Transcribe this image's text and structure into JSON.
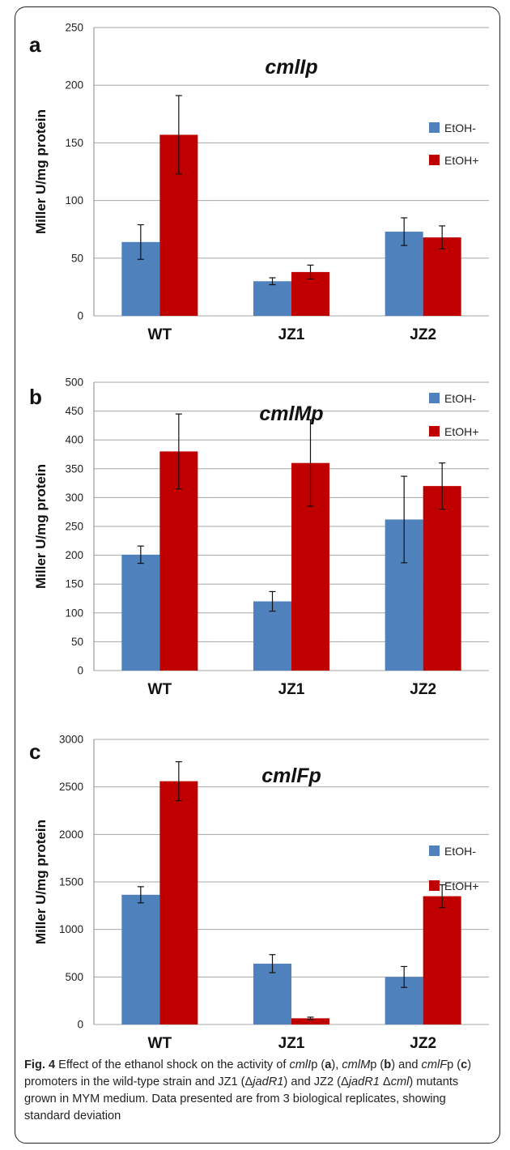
{
  "colors": {
    "etoh_minus": "#4f81bd",
    "etoh_plus": "#c00000",
    "grid": "#a6a6a6",
    "axis_text": "#222222"
  },
  "chart_data": [
    {
      "type": "bar",
      "panel": "a",
      "title": "cmlIp",
      "ylabel": "Miller U/mg protein",
      "categories": [
        "WT",
        "JZ1",
        "JZ2"
      ],
      "yticks": [
        "0",
        "50",
        "100",
        "150",
        "200",
        "250"
      ],
      "ylim": [
        0,
        250
      ],
      "legend_position": "right",
      "series": [
        {
          "name": "EtOH-",
          "values": [
            64,
            30,
            73
          ],
          "errors": [
            15,
            3,
            12
          ]
        },
        {
          "name": "EtOH+",
          "values": [
            157,
            38,
            68
          ],
          "errors": [
            34,
            6,
            10
          ]
        }
      ]
    },
    {
      "type": "bar",
      "panel": "b",
      "title": "cmlMp",
      "ylabel": "Miller U/mg protein",
      "categories": [
        "WT",
        "JZ1",
        "JZ2"
      ],
      "yticks": [
        "0",
        "50",
        "100",
        "150",
        "200",
        "250",
        "300",
        "350",
        "400",
        "450",
        "500"
      ],
      "ylim": [
        0,
        500
      ],
      "legend_position": "top-right",
      "series": [
        {
          "name": "EtOH-",
          "values": [
            201,
            120,
            262
          ],
          "errors": [
            15,
            17,
            75
          ]
        },
        {
          "name": "EtOH+",
          "values": [
            380,
            360,
            320
          ],
          "errors": [
            65,
            75,
            40
          ]
        }
      ]
    },
    {
      "type": "bar",
      "panel": "c",
      "title": "cmlFp",
      "ylabel": "Miller U/mg protein",
      "categories": [
        "WT",
        "JZ1",
        "JZ2"
      ],
      "yticks": [
        "0",
        "500",
        "1000",
        "1500",
        "2000",
        "2500",
        "3000"
      ],
      "ylim": [
        0,
        3000
      ],
      "legend_position": "right",
      "series": [
        {
          "name": "EtOH-",
          "values": [
            1365,
            640,
            500
          ],
          "errors": [
            85,
            95,
            110
          ]
        },
        {
          "name": "EtOH+",
          "values": [
            2560,
            65,
            1350
          ],
          "errors": [
            205,
            12,
            120
          ]
        }
      ]
    }
  ],
  "caption": {
    "label": "Fig. 4",
    "parts": [
      {
        "t": "  Effect of the ethanol shock on the activity of ",
        "s": "n"
      },
      {
        "t": "cmlI",
        "s": "i"
      },
      {
        "t": "p (",
        "s": "n"
      },
      {
        "t": "a",
        "s": "b"
      },
      {
        "t": "), ",
        "s": "n"
      },
      {
        "t": "cmlM",
        "s": "i"
      },
      {
        "t": "p (",
        "s": "n"
      },
      {
        "t": "b",
        "s": "b"
      },
      {
        "t": ") and ",
        "s": "n"
      },
      {
        "t": "cmlF",
        "s": "i"
      },
      {
        "t": "p (",
        "s": "n"
      },
      {
        "t": "c",
        "s": "b"
      },
      {
        "t": ") promoters in the wild-type strain and JZ1 (Δ",
        "s": "n"
      },
      {
        "t": "jadR1",
        "s": "i"
      },
      {
        "t": ") and JZ2 (Δ",
        "s": "n"
      },
      {
        "t": "jadR1",
        "s": "i"
      },
      {
        "t": " Δ",
        "s": "n"
      },
      {
        "t": "cml",
        "s": "i"
      },
      {
        "t": ") mutants grown in MYM medium. Data presented are from 3 biological replicates, showing standard deviation",
        "s": "n"
      }
    ]
  }
}
